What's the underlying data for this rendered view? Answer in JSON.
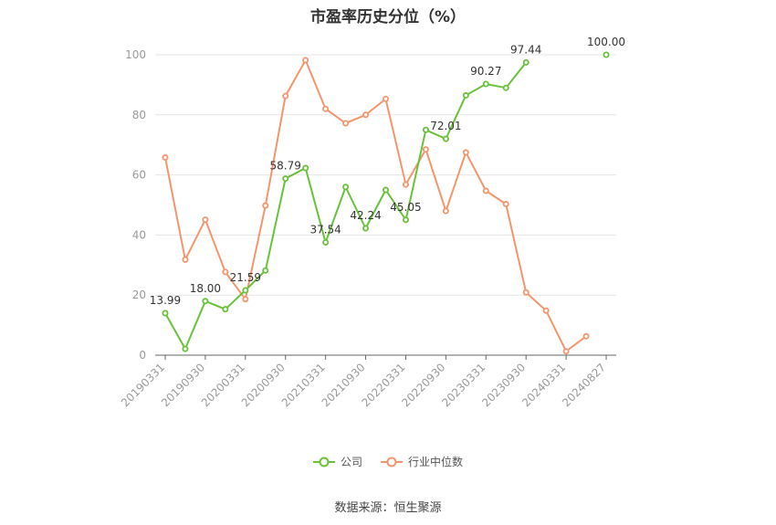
{
  "chart_data": {
    "type": "line",
    "title": "市盈率历史分位（%）",
    "ylim": [
      0,
      100
    ],
    "yticks": [
      0,
      20,
      40,
      60,
      80,
      100
    ],
    "x_tick_labels": [
      "20190331",
      "20190930",
      "20200331",
      "20200930",
      "20210331",
      "20210930",
      "20220331",
      "20220930",
      "20230331",
      "20230930",
      "20240331",
      "20240827"
    ],
    "x": [
      "20190331",
      "20190630",
      "20190930",
      "20191231",
      "20200331",
      "20200630",
      "20200930",
      "20201231",
      "20210331",
      "20210630",
      "20210930",
      "20211231",
      "20220331",
      "20220630",
      "20220930",
      "20221231",
      "20230331",
      "20230630",
      "20230930",
      "20231231",
      "20240331",
      "20240630",
      "20240827"
    ],
    "series": [
      {
        "name": "公司",
        "color": "#67c23a",
        "values": [
          13.99,
          2.1,
          18.0,
          15.3,
          21.59,
          28.2,
          58.79,
          62.3,
          37.54,
          56.0,
          42.24,
          55.0,
          45.05,
          75.0,
          72.01,
          86.5,
          90.27,
          89.0,
          97.44,
          null,
          null,
          null,
          100.0
        ],
        "labels": {
          "0": "13.99",
          "2": "18.00",
          "4": "21.59",
          "6": "58.79",
          "8": "37.54",
          "10": "42.24",
          "12": "45.05",
          "14": "72.01",
          "16": "90.27",
          "18": "97.44",
          "22": "100.00"
        }
      },
      {
        "name": "行业中位数",
        "color": "#f5956b",
        "values": [
          65.8,
          31.8,
          45.1,
          27.7,
          18.6,
          49.8,
          86.3,
          98.2,
          82.0,
          77.2,
          80.0,
          85.3,
          56.8,
          68.5,
          48.0,
          67.5,
          54.7,
          50.3,
          20.9,
          14.8,
          1.3,
          6.3,
          null
        ]
      }
    ]
  },
  "source": "数据来源：恒生聚源"
}
